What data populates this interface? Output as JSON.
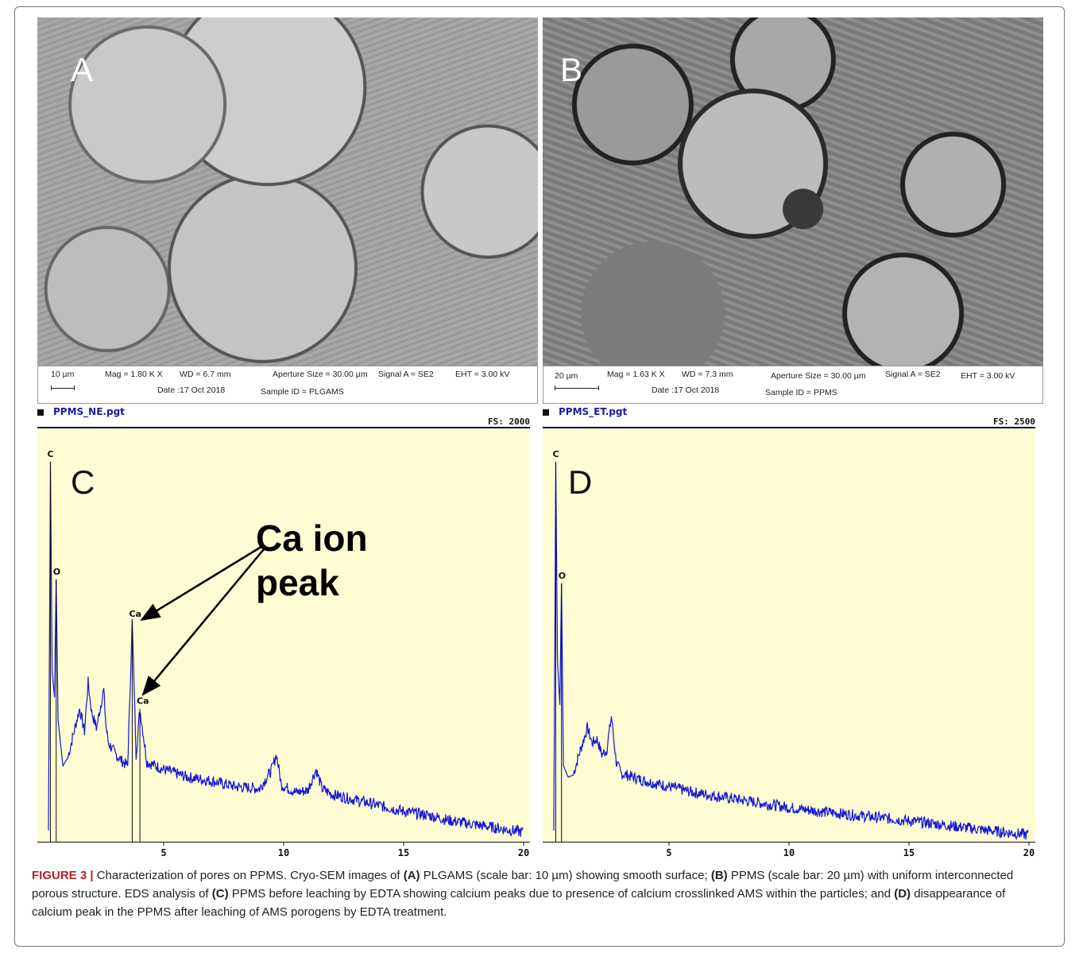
{
  "panels": {
    "a": {
      "letter": "A",
      "info": {
        "scale": "10 µm",
        "mag": "Mag =  1.80 K X",
        "wd": "WD = 6.7 mm",
        "aperture": "Aperture Size = 30.00 µm",
        "signal": "Signal A = SE2",
        "eht": "EHT =  3.00 kV",
        "date": "Date :17 Oct 2018",
        "sample": "Sample ID = PLGAMS"
      }
    },
    "b": {
      "letter": "B",
      "info": {
        "scale": "20 µm",
        "mag": "Mag =  1.63 K X",
        "wd": "WD = 7.3 mm",
        "aperture": "Aperture Size = 30.00 µm",
        "signal": "Signal A = SE2",
        "eht": "EHT =  3.00 kV",
        "date": "Date :17 Oct 2018",
        "sample": "Sample ID = PPMS"
      }
    },
    "c": {
      "letter": "C",
      "filename": "PPMS_NE.pgt",
      "fs": "FS:  2000",
      "annotation_line1": "Ca ion",
      "annotation_line2": "peak",
      "peak_labels": {
        "c": "C",
        "o": "O",
        "ca1": "Ca",
        "ca2": "Ca"
      }
    },
    "d": {
      "letter": "D",
      "filename": "PPMS_ET.pgt",
      "fs": "FS:  2500",
      "peak_labels": {
        "c": "C",
        "o": "O"
      }
    }
  },
  "caption": {
    "figure": "FIGURE 3 |",
    "p1": " Characterization of pores on PPMS. Cryo-SEM images of ",
    "a": "(A)",
    "p2": " PLGAMS (scale bar: 10 µm) showing smooth surface; ",
    "b": "(B)",
    "p3": " PPMS (scale bar: 20 µm) with uniform interconnected porous structure. EDS analysis of ",
    "c": "(C)",
    "p4": " PPMS before leaching by EDTA showing calcium peaks due to presence of calcium crosslinked AMS within the particles; and ",
    "d": "(D)",
    "p5": " disappearance of calcium peak in the PPMS after leaching of AMS porogens by EDTA treatment."
  },
  "colors": {
    "spectrum": "#1515d8",
    "background": "#fdfcd2",
    "figure_label": "#b22222"
  },
  "chart_data": [
    {
      "type": "line",
      "title": "PPMS_NE.pgt",
      "xlim": [
        0,
        20
      ],
      "xticks": [
        "5",
        "10",
        "15",
        "20"
      ],
      "full_scale": 2000,
      "peaks": [
        {
          "label": "C",
          "x": 0.28,
          "y": 1000
        },
        {
          "label": "O",
          "x": 0.52,
          "y": 690
        },
        {
          "label": "Ca",
          "x": 3.69,
          "y": 580
        },
        {
          "label": "Ca",
          "x": 4.01,
          "y": 350
        }
      ],
      "series": [
        {
          "x": [
            0.2,
            0.28,
            0.35,
            0.45,
            0.52,
            0.6,
            0.8,
            1.0,
            1.3,
            1.5,
            1.7,
            1.85,
            2.0,
            2.2,
            2.5,
            2.6,
            2.7,
            3.0,
            3.3,
            3.5,
            3.69,
            3.85,
            4.01,
            4.3,
            5,
            6,
            7,
            8,
            9,
            9.5,
            9.7,
            9.9,
            10.5,
            11,
            11.35,
            11.6,
            12,
            13,
            14,
            15,
            16,
            17,
            18,
            19,
            20
          ],
          "y": [
            30,
            1000,
            450,
            380,
            690,
            320,
            200,
            220,
            300,
            350,
            290,
            420,
            340,
            300,
            400,
            300,
            260,
            230,
            210,
            200,
            580,
            230,
            350,
            210,
            190,
            170,
            160,
            145,
            140,
            190,
            230,
            150,
            130,
            135,
            190,
            140,
            125,
            110,
            95,
            80,
            70,
            55,
            45,
            35,
            25
          ]
        }
      ]
    },
    {
      "type": "line",
      "title": "PPMS_ET.pgt",
      "xlim": [
        0,
        20
      ],
      "xticks": [
        "5",
        "10",
        "15",
        "20"
      ],
      "full_scale": 2500,
      "peaks": [
        {
          "label": "C",
          "x": 0.28,
          "y": 1000
        },
        {
          "label": "O",
          "x": 0.52,
          "y": 680
        }
      ],
      "series": [
        {
          "x": [
            0.2,
            0.28,
            0.35,
            0.45,
            0.52,
            0.6,
            0.8,
            1.0,
            1.3,
            1.6,
            1.8,
            2.0,
            2.2,
            2.4,
            2.6,
            2.8,
            3.0,
            3.5,
            4,
            5,
            6,
            7,
            8,
            9,
            10,
            11,
            12,
            13,
            14,
            15,
            16,
            17,
            18,
            19,
            20
          ],
          "y": [
            30,
            1000,
            480,
            360,
            680,
            200,
            170,
            175,
            240,
            300,
            260,
            270,
            230,
            240,
            330,
            210,
            180,
            170,
            160,
            145,
            130,
            120,
            110,
            100,
            90,
            82,
            75,
            68,
            62,
            55,
            48,
            40,
            32,
            25,
            18
          ]
        }
      ]
    }
  ]
}
